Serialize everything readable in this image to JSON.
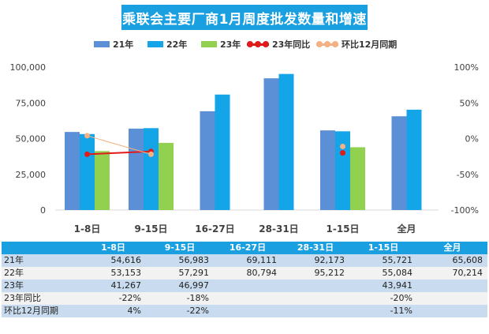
{
  "title": "乘联会主要厂商1月周度批发数量和增速",
  "colors": {
    "s21": "#5b8fd6",
    "s22": "#13a5e8",
    "s23": "#92d050",
    "yoy": "#e01b1b",
    "mom": "#f4b183",
    "header": "#1a9fe0"
  },
  "chart_data": {
    "type": "bar",
    "categories": [
      "1-8日",
      "9-15日",
      "16-27日",
      "28-31日",
      "1-15日",
      "全月"
    ],
    "series": [
      {
        "name": "21年",
        "type": "bar",
        "axis": "left",
        "values": [
          54616,
          56983,
          69111,
          92173,
          55721,
          65608
        ]
      },
      {
        "name": "22年",
        "type": "bar",
        "axis": "left",
        "values": [
          53153,
          57291,
          80794,
          95212,
          55084,
          70214
        ]
      },
      {
        "name": "23年",
        "type": "bar",
        "axis": "left",
        "values": [
          41267,
          46997,
          null,
          null,
          43941,
          null
        ]
      },
      {
        "name": "23年同比",
        "type": "line",
        "axis": "right",
        "unit": "%",
        "values": [
          -22,
          -18,
          null,
          null,
          -20,
          null
        ]
      },
      {
        "name": "环比12月同期",
        "type": "line",
        "axis": "right",
        "unit": "%",
        "values": [
          4,
          -22,
          null,
          null,
          -11,
          null
        ]
      }
    ],
    "y_left": {
      "min": 0,
      "max": 100000,
      "ticks": [
        "0",
        "25,000",
        "50,000",
        "75,000",
        "100,000"
      ]
    },
    "y_right": {
      "min": -100,
      "max": 100,
      "ticks": [
        "-100%",
        "-50%",
        "0%",
        "50%",
        "100%"
      ]
    },
    "legend_position": "top",
    "grid": false
  },
  "table": {
    "headers": [
      "",
      "1-8日",
      "9-15日",
      "16-27日",
      "28-31日",
      "1-15日",
      "全月"
    ],
    "rows": [
      {
        "label": "21年",
        "cells": [
          "54,616",
          "56,983",
          "69,111",
          "92,173",
          "55,721",
          "65,608"
        ]
      },
      {
        "label": "22年",
        "cells": [
          "53,153",
          "57,291",
          "80,794",
          "95,212",
          "55,084",
          "70,214"
        ]
      },
      {
        "label": "23年",
        "cells": [
          "41,267",
          "46,997",
          "",
          "",
          "43,941",
          ""
        ]
      },
      {
        "label": "23年同比",
        "cells": [
          "-22%",
          "-18%",
          "",
          "",
          "-20%",
          ""
        ]
      },
      {
        "label": "环比12月同期",
        "cells": [
          "4%",
          "-22%",
          "",
          "",
          "-11%",
          ""
        ]
      }
    ]
  }
}
